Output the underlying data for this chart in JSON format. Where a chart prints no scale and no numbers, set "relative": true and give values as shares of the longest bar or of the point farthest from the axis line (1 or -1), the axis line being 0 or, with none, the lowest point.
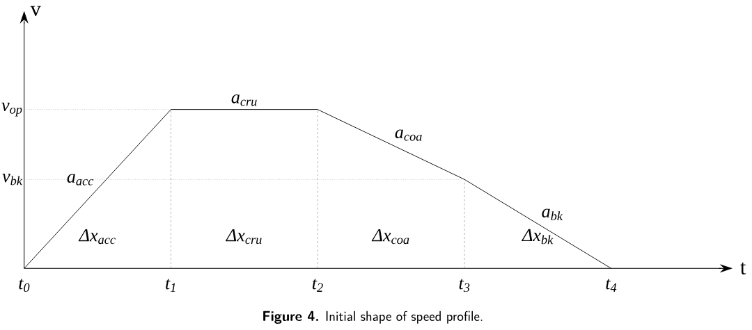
{
  "chart_data": {
    "type": "line",
    "title": "**Figure 4.** Initial shape of speed profile.",
    "xlabel": "t",
    "ylabel": "v",
    "relative": true,
    "categories": [
      "t$_{0}$",
      "t$_{1}$",
      "t$_{2}$",
      "t$_{3}$",
      "t$_{4}$"
    ],
    "series": [
      {
        "color": "#000000",
        "values": [
          0,
          1,
          1,
          0.56,
          0
        ]
      }
    ],
    "ref_lines": [
      {
        "axis": "x",
        "value": "t$_{1}$",
        "line_style": "dashed"
      },
      {
        "axis": "x",
        "value": "t$_{2}$",
        "line_style": "dashed"
      },
      {
        "axis": "x",
        "value": "t$_{3}$",
        "line_style": "dashed"
      }
    ],
    "annotations": [
      {
        "text": "v$_{op}$",
        "x": "t$_{1}$",
        "y": 1
      },
      {
        "text": "v$_{bk}$",
        "x": "t$_{3}$",
        "y": 0.56
      },
      "a$_{acc}$",
      "a$_{cru}$",
      "a$_{coa}$",
      "a$_{bk}$",
      "Δx$_{acc}$",
      "Δx$_{cru}$",
      "Δx$_{coa}$",
      "Δx$_{bk}$"
    ]
  }
}
